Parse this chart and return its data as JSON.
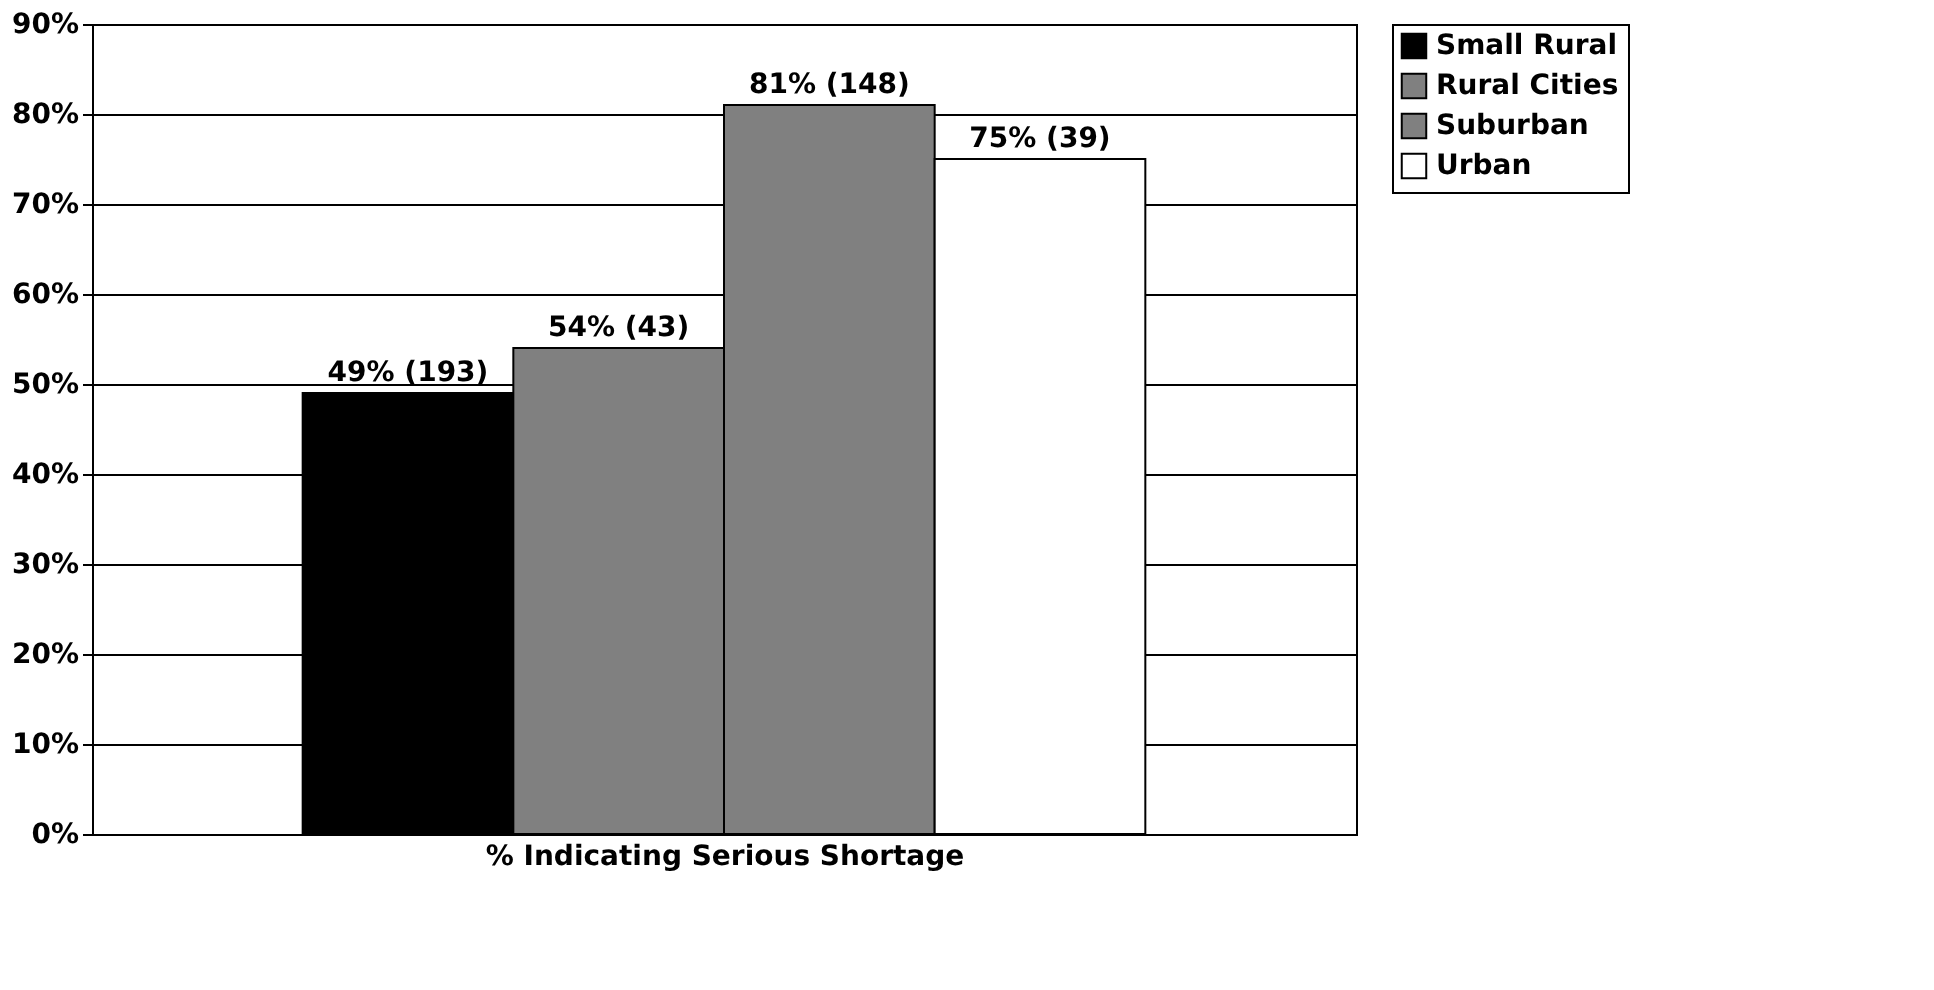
{
  "chart_data": {
    "type": "bar",
    "xlabel": "% Indicating Serious Shortage",
    "categories": [
      null
    ],
    "series": [
      {
        "name": "Small Rural",
        "color": "#000000",
        "values": [
          49
        ],
        "value_labels": [
          "49% (193)"
        ]
      },
      {
        "name": "Rural Cities",
        "color": "#808080",
        "values": [
          54
        ],
        "value_labels": [
          "54% (43)"
        ]
      },
      {
        "name": "Suburban",
        "color": "#808080",
        "values": [
          81
        ],
        "value_labels": [
          "81% (148)"
        ]
      },
      {
        "name": "Urban",
        "color": "#ffffff",
        "values": [
          75
        ],
        "value_labels": [
          "75% (39)"
        ]
      }
    ],
    "ylim": [
      0,
      90
    ],
    "yticks": [
      {
        "value": 0,
        "label": "0%"
      },
      {
        "value": 10,
        "label": "10%"
      },
      {
        "value": 20,
        "label": "20%"
      },
      {
        "value": 30,
        "label": "30%"
      },
      {
        "value": 40,
        "label": "40%"
      },
      {
        "value": 50,
        "label": "50%"
      },
      {
        "value": 60,
        "label": "60%"
      },
      {
        "value": 70,
        "label": "70%"
      },
      {
        "value": 80,
        "label": "80%"
      },
      {
        "value": 90,
        "label": "90%"
      }
    ],
    "grid": "y",
    "legend": "right",
    "tick_labels": "y"
  }
}
